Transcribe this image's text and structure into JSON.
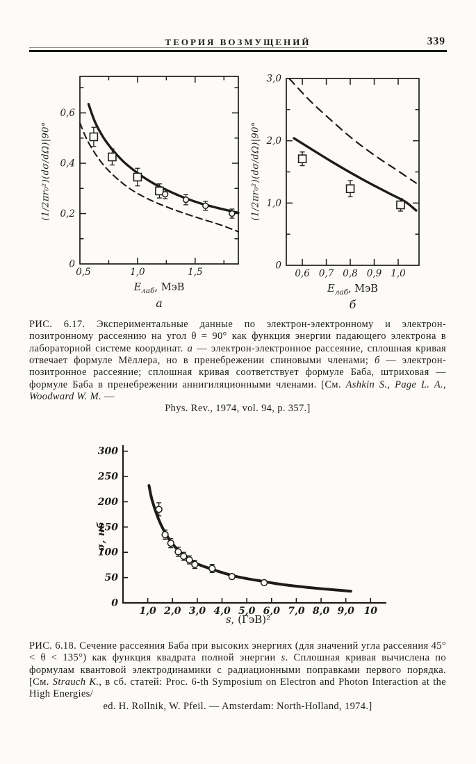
{
  "colors": {
    "ink": "#1d1c1a",
    "paper": "#fcfbf7"
  },
  "header": {
    "title": "ТЕОРИЯ ВОЗМУЩЕНИЙ",
    "page_number": "339"
  },
  "captions": {
    "fig_6_17": {
      "body": [
        {
          "t": "РИС. 6.17. Экспериментальные данные по электрон-электронному и электрон-позитронному рассеянию на угол θ = 90° как функция энергии падающего электрона в лабораторной системе координат. "
        },
        {
          "t": "а",
          "i": true
        },
        {
          "t": " — электрон-электронное рассеяние, сплошная кривая отвечает формуле Мёллера, но в пренебрежении спиновыми членами; "
        },
        {
          "t": "б",
          "i": true
        },
        {
          "t": " — электрон-позитронное рассеяние; сплошная кривая соответствует формуле Баба, штриховая — формуле Баба в пренебрежении аннигиляционными членами. [См. "
        },
        {
          "t": "Ashkin S., Page L. A., Woodward W. M.",
          "i": true
        },
        {
          "t": " —"
        }
      ],
      "tail": [
        {
          "t": "Phys. Rev., 1974, vol. 94, p. 357.]"
        }
      ]
    },
    "fig_6_18": {
      "body": [
        {
          "t": "РИС. 6.18. Сечение рассеяния Баба при высоких энергиях (для значений угла рассеяния 45° < θ < 135°) как функция квадрата полной энергии "
        },
        {
          "t": "s",
          "i": true
        },
        {
          "t": ". Сплошная кривая вычислена по формулам квантовой электродинамики с радиационными поправками первого порядка. [См. "
        },
        {
          "t": "Strauch K.",
          "i": true
        },
        {
          "t": ", в сб. статей: Proc. 6-th Symposium on Electron and Photon Interaction at the High Energies/"
        }
      ],
      "tail": [
        {
          "t": "ed. H. Rollnik, W. Pfeil. — Amsterdam: North-Holland, 1974.]"
        }
      ]
    }
  },
  "chart_data": [
    {
      "id": "fig-6-17a",
      "type": "line",
      "axis_style": "box",
      "sublabel": "а",
      "xlabel": {
        "main": "E",
        "sub": "лаб",
        "rest": ", МэВ"
      },
      "ylabel": "(1/2πr₀²)(dσ/dΩ)|90°",
      "xlim": [
        0.5,
        1.875
      ],
      "ylim": [
        0,
        0.745
      ],
      "xticks": [
        [
          "0,5",
          0.5
        ],
        [
          "1,0",
          1.0
        ],
        [
          "1,5",
          1.5
        ]
      ],
      "xminor": [
        0.75,
        1.25,
        1.75
      ],
      "yticks": [
        [
          "0",
          0
        ],
        [
          "0,2",
          0.2
        ],
        [
          "0,4",
          0.4
        ],
        [
          "0,6",
          0.6
        ]
      ],
      "yminor": [
        0.1,
        0.3,
        0.5,
        0.7
      ],
      "series": [
        {
          "name": "solid-curve-moller-no-spin-terms",
          "style": "solid",
          "points": [
            [
              0.575,
              0.635
            ],
            [
              0.63,
              0.565
            ],
            [
              0.7,
              0.505
            ],
            [
              0.78,
              0.455
            ],
            [
              0.87,
              0.41
            ],
            [
              0.96,
              0.375
            ],
            [
              1.05,
              0.345
            ],
            [
              1.15,
              0.317
            ],
            [
              1.27,
              0.29
            ],
            [
              1.4,
              0.264
            ],
            [
              1.55,
              0.24
            ],
            [
              1.7,
              0.222
            ],
            [
              1.875,
              0.203
            ]
          ]
        },
        {
          "name": "dashed-curve",
          "style": "dashed",
          "points": [
            [
              0.5,
              0.56
            ],
            [
              0.56,
              0.495
            ],
            [
              0.63,
              0.44
            ],
            [
              0.71,
              0.39
            ],
            [
              0.8,
              0.348
            ],
            [
              0.9,
              0.31
            ],
            [
              1.0,
              0.28
            ],
            [
              1.12,
              0.252
            ],
            [
              1.25,
              0.227
            ],
            [
              1.4,
              0.202
            ],
            [
              1.56,
              0.178
            ],
            [
              1.72,
              0.155
            ],
            [
              1.875,
              0.128
            ]
          ]
        }
      ],
      "markers": [
        {
          "shape": "square",
          "name": "electron-electron-data-squares",
          "points": [
            [
              0.62,
              0.505,
              0.038
            ],
            [
              0.78,
              0.425,
              0.032
            ],
            [
              1.0,
              0.345,
              0.035
            ],
            [
              1.19,
              0.29,
              0.028
            ]
          ]
        },
        {
          "shape": "circle",
          "name": "electron-electron-data-circles",
          "points": [
            [
              1.24,
              0.277,
              0.018
            ],
            [
              1.42,
              0.255,
              0.02
            ],
            [
              1.59,
              0.231,
              0.018
            ],
            [
              1.82,
              0.2,
              0.018
            ]
          ]
        }
      ]
    },
    {
      "id": "fig-6-17b",
      "type": "line",
      "axis_style": "box",
      "sublabel": "б",
      "xlabel": {
        "main": "E",
        "sub": "лаб",
        "rest": ", МэВ"
      },
      "ylabel": "(1/2πr₀²)(dσ/dΩ)|90°",
      "xlim": [
        0.533,
        1.087
      ],
      "ylim": [
        0,
        3.0
      ],
      "xticks": [
        [
          "0,6",
          0.6
        ],
        [
          "0,7",
          0.7
        ],
        [
          "0,8",
          0.8
        ],
        [
          "0,9",
          0.9
        ],
        [
          "1,0",
          1.0
        ]
      ],
      "xminor": [],
      "yticks": [
        [
          "0",
          0
        ],
        [
          "1,0",
          1.0
        ],
        [
          "2,0",
          2.0
        ],
        [
          "3,0",
          3.0
        ]
      ],
      "yminor": [
        0.5,
        1.5,
        2.5
      ],
      "series": [
        {
          "name": "solid-curve-bhabha-formula",
          "style": "solid",
          "points": [
            [
              0.565,
              2.04
            ],
            [
              0.64,
              1.86
            ],
            [
              0.72,
              1.67
            ],
            [
              0.8,
              1.49
            ],
            [
              0.88,
              1.32
            ],
            [
              0.96,
              1.16
            ],
            [
              1.03,
              1.02
            ],
            [
              1.075,
              0.88
            ]
          ]
        },
        {
          "name": "dashed-curve-bhabha-no-annihilation",
          "style": "dashed",
          "points": [
            [
              0.545,
              3.0
            ],
            [
              0.63,
              2.65
            ],
            [
              0.72,
              2.33
            ],
            [
              0.81,
              2.03
            ],
            [
              0.9,
              1.77
            ],
            [
              0.99,
              1.54
            ],
            [
              1.075,
              1.32
            ]
          ]
        }
      ],
      "markers": [
        {
          "shape": "square",
          "name": "electron-positron-data-squares",
          "points": [
            [
              0.6,
              1.71,
              0.11
            ],
            [
              0.8,
              1.23,
              0.13
            ],
            [
              1.01,
              0.97,
              0.1
            ]
          ]
        }
      ]
    },
    {
      "id": "fig-6-18",
      "type": "line",
      "axis_style": "L",
      "sublabel": "",
      "xlabel": {
        "main": "s",
        "sub": "",
        "rest": ", (ГэВ)²"
      },
      "ylabel": "σ, нб",
      "xlim": [
        0,
        10.3
      ],
      "ylim": [
        0,
        305
      ],
      "xticks": [
        [
          "1,0",
          1
        ],
        [
          "2,0",
          2
        ],
        [
          "3,0",
          3
        ],
        [
          "4,0",
          4
        ],
        [
          "5,0",
          5
        ],
        [
          "6,0",
          6
        ],
        [
          "7,0",
          7
        ],
        [
          "8,0",
          8
        ],
        [
          "9,0",
          9
        ],
        [
          "10",
          10
        ]
      ],
      "xminor": [],
      "yticks": [
        [
          "0",
          0
        ],
        [
          "50",
          50
        ],
        [
          "100",
          100
        ],
        [
          "150",
          150
        ],
        [
          "200",
          200
        ],
        [
          "250",
          250
        ],
        [
          "300",
          300
        ]
      ],
      "yminor": [],
      "series": [
        {
          "name": "solid-curve-qed-first-order",
          "style": "solid",
          "points": [
            [
              1.05,
              232
            ],
            [
              1.15,
              208
            ],
            [
              1.3,
              184
            ],
            [
              1.45,
              164
            ],
            [
              1.62,
              146
            ],
            [
              1.8,
              131
            ],
            [
              2.0,
              117
            ],
            [
              2.25,
              103
            ],
            [
              2.5,
              93
            ],
            [
              2.8,
              82
            ],
            [
              3.1,
              75
            ],
            [
              3.5,
              68
            ],
            [
              4.0,
              60
            ],
            [
              4.5,
              53
            ],
            [
              5.0,
              48
            ],
            [
              5.6,
              43
            ],
            [
              6.2,
              38
            ],
            [
              7.0,
              33
            ],
            [
              8.0,
              28
            ],
            [
              9.2,
              23
            ]
          ]
        }
      ],
      "markers": [
        {
          "shape": "circle",
          "name": "bhabha-cross-section-data",
          "points": [
            [
              1.45,
              185,
              13
            ],
            [
              1.7,
              135,
              9
            ],
            [
              1.93,
              118,
              9
            ],
            [
              2.23,
              101,
              9
            ],
            [
              2.45,
              92,
              8
            ],
            [
              2.68,
              85,
              8
            ],
            [
              2.9,
              76,
              8
            ],
            [
              3.6,
              68,
              8
            ],
            [
              4.4,
              52,
              5
            ],
            [
              5.7,
              40,
              0
            ]
          ]
        }
      ]
    }
  ]
}
